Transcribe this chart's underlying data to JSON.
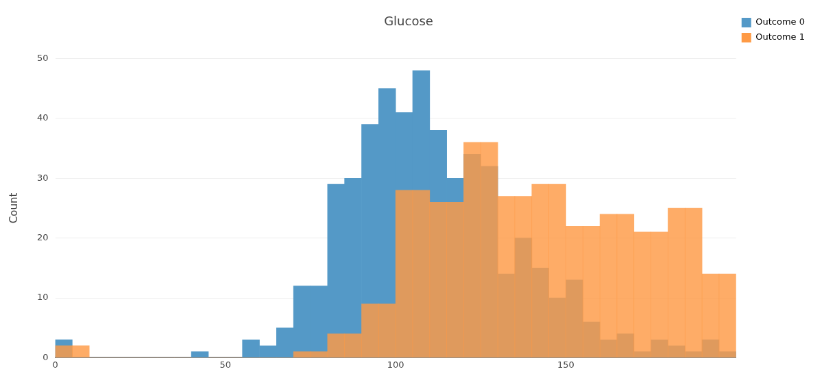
{
  "chart_data": {
    "type": "histogram",
    "title": "Glucose",
    "ylabel": "Count",
    "xlim": [
      0,
      200
    ],
    "xticks": [
      0,
      50,
      100,
      150
    ],
    "ylim": [
      0,
      50
    ],
    "yticks": [
      0,
      10,
      20,
      30,
      40,
      50
    ],
    "grid": "y",
    "legend": "top right",
    "bins": [
      0,
      5,
      10,
      15,
      20,
      25,
      30,
      35,
      40,
      45,
      50,
      55,
      60,
      65,
      70,
      75,
      80,
      85,
      90,
      95,
      100,
      105,
      110,
      115,
      120,
      125,
      130,
      135,
      140,
      145,
      150,
      155,
      160,
      165,
      170,
      175,
      180,
      185,
      190,
      195,
      200
    ],
    "series": [
      {
        "name": "Outcome 0",
        "color": "#5499c7",
        "values": [
          3,
          0,
          0,
          0,
          0,
          0,
          0,
          0,
          1,
          0,
          0,
          3,
          2,
          5,
          12,
          12,
          29,
          30,
          39,
          45,
          41,
          48,
          38,
          30,
          34,
          32,
          14,
          20,
          15,
          10,
          13,
          6,
          3,
          4,
          1,
          3,
          2,
          1,
          3,
          1
        ]
      },
      {
        "name": "Outcome 1",
        "color": "#fe9a45",
        "values": [
          2,
          2,
          0,
          0,
          0,
          0,
          0,
          0,
          0,
          0,
          0,
          0,
          0,
          0,
          1,
          1,
          4,
          4,
          9,
          9,
          28,
          28,
          26,
          26,
          36,
          36,
          27,
          27,
          29,
          29,
          22,
          22,
          24,
          24,
          21,
          21,
          25,
          25,
          14,
          14
        ]
      }
    ]
  }
}
